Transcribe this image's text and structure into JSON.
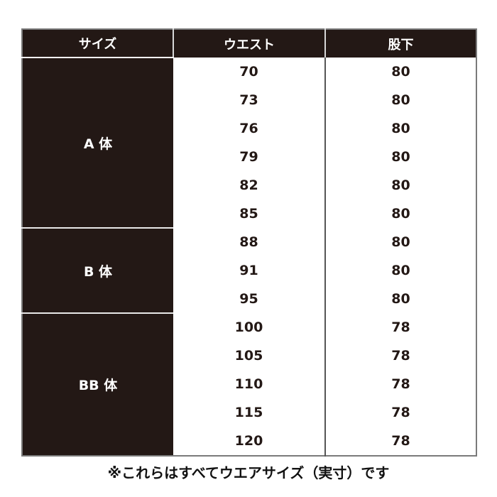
{
  "headers": {
    "size": "サイズ",
    "waist": "ウエスト",
    "inseam": "股下"
  },
  "groups": [
    {
      "label": "A 体",
      "rows": [
        [
          "70",
          "80"
        ],
        [
          "73",
          "80"
        ],
        [
          "76",
          "80"
        ],
        [
          "79",
          "80"
        ],
        [
          "82",
          "80"
        ],
        [
          "85",
          "80"
        ]
      ]
    },
    {
      "label": "B 体",
      "rows": [
        [
          "88",
          "80"
        ],
        [
          "91",
          "80"
        ],
        [
          "95",
          "80"
        ]
      ]
    },
    {
      "label": "BB 体",
      "rows": [
        [
          "100",
          "78"
        ],
        [
          "105",
          "78"
        ],
        [
          "110",
          "78"
        ],
        [
          "115",
          "78"
        ],
        [
          "120",
          "78"
        ]
      ]
    }
  ],
  "note": "※これらはすべてウエアサイズ（実寸）です",
  "colors": {
    "header_bg": "#231815",
    "text": "#231815"
  }
}
